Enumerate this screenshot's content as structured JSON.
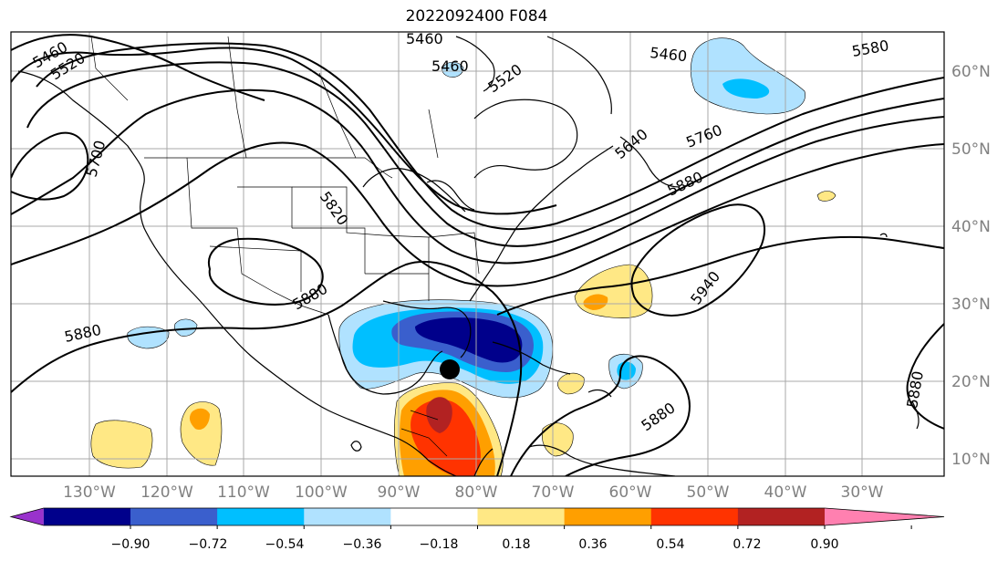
{
  "title": "2022092400 F084",
  "lon_labels": [
    "130°W",
    "120°W",
    "110°W",
    "100°W",
    "90°W",
    "80°W",
    "70°W",
    "60°W",
    "50°W",
    "40°W",
    "30°W"
  ],
  "lat_labels": [
    "60°N",
    "50°N",
    "40°N",
    "30°N",
    "20°N",
    "10°N"
  ],
  "contour_labels": [
    "5460",
    "5520",
    "5460",
    "5520",
    "5460",
    "5580",
    "5640",
    "5760",
    "5880",
    "5700",
    "5820",
    "5880",
    "5940",
    "5880",
    "5880",
    "5880"
  ],
  "colorbar": {
    "ticks": [
      "−0.90",
      "−0.72",
      "−0.54",
      "−0.36",
      "−0.18",
      "0.18",
      "0.36",
      "0.54",
      "0.72",
      "0.90"
    ],
    "colors": [
      "#9932cc",
      "#00008b",
      "#3a5fcd",
      "#00bfff",
      "#b0e2ff",
      "#ffffff",
      "#ffe885",
      "#ff9f00",
      "#ff3300",
      "#b22222",
      "#ff80b0"
    ]
  },
  "marker": {
    "label": "storm-center",
    "lon": -84.5,
    "lat": 21.8
  }
}
